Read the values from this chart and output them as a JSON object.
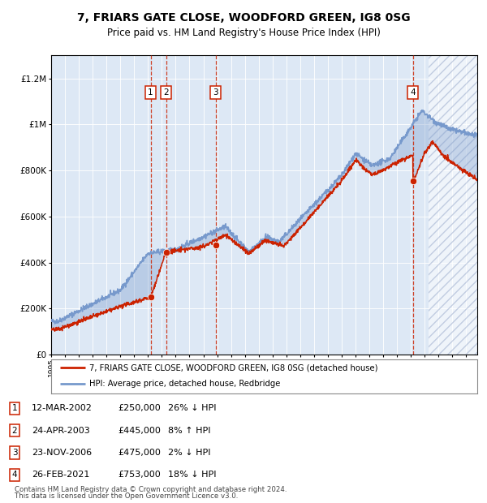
{
  "title": "7, FRIARS GATE CLOSE, WOODFORD GREEN, IG8 0SG",
  "subtitle": "Price paid vs. HM Land Registry's House Price Index (HPI)",
  "legend_line1": "7, FRIARS GATE CLOSE, WOODFORD GREEN, IG8 0SG (detached house)",
  "legend_line2": "HPI: Average price, detached house, Redbridge",
  "footnote1": "Contains HM Land Registry data © Crown copyright and database right 2024.",
  "footnote2": "This data is licensed under the Open Government Licence v3.0.",
  "transactions": [
    {
      "num": 1,
      "date": "12-MAR-2002",
      "price": "£250,000",
      "pct": "26%",
      "dir": "↓",
      "year_x": 2002.19,
      "price_val": 250000
    },
    {
      "num": 2,
      "date": "24-APR-2003",
      "price": "£445,000",
      "pct": "8%",
      "dir": "↑",
      "year_x": 2003.31,
      "price_val": 445000
    },
    {
      "num": 3,
      "date": "23-NOV-2006",
      "price": "£475,000",
      "pct": "2%",
      "dir": "↓",
      "year_x": 2006.89,
      "price_val": 475000
    },
    {
      "num": 4,
      "date": "26-FEB-2021",
      "price": "£753,000",
      "pct": "18%",
      "dir": "↓",
      "year_x": 2021.14,
      "price_val": 753000
    }
  ],
  "hpi_color": "#7799cc",
  "price_color": "#cc2200",
  "dashed_color": "#cc2200",
  "bg_color": "#dde8f5",
  "ylim": [
    0,
    1300000
  ],
  "xlim_start": 1995.0,
  "xlim_end": 2025.8,
  "yticks": [
    0,
    200000,
    400000,
    600000,
    800000,
    1000000,
    1200000
  ],
  "hatch_start": 2022.3
}
